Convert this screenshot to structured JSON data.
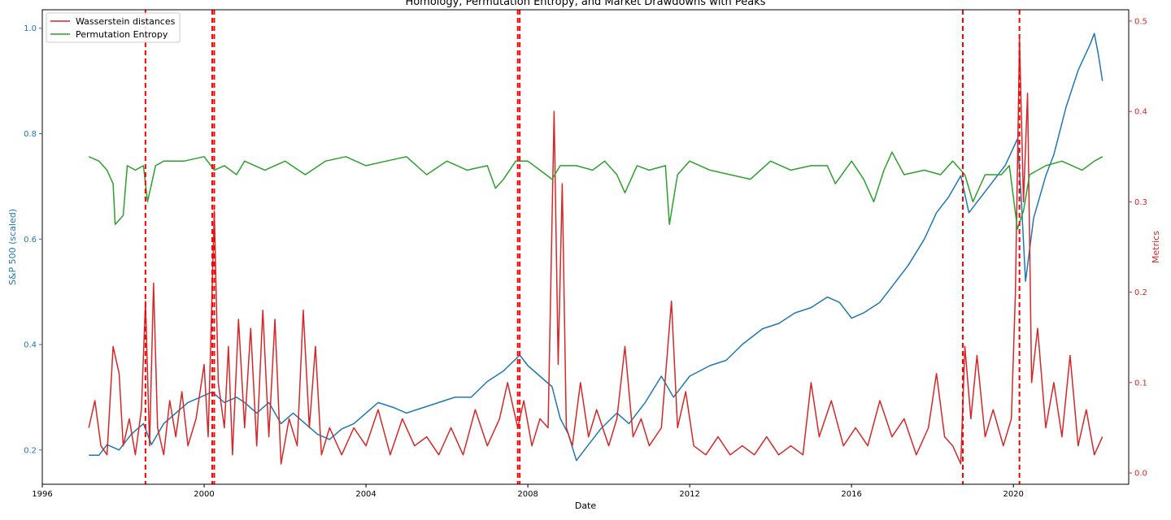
{
  "chart_data": {
    "type": "line",
    "title": "Homology, Permutation Entropy, and Market Drawdowns with Peaks",
    "xlabel": "Date",
    "ylabel_left": "S&P 500 (scaled)",
    "ylabel_right": "Metrics",
    "xlim": [
      1996.0,
      2022.85
    ],
    "ylim_left": [
      0.135,
      1.035
    ],
    "ylim_right": [
      -0.0125,
      0.5125
    ],
    "x_ticks": [
      1996,
      2000,
      2004,
      2008,
      2012,
      2016,
      2020
    ],
    "x_tick_labels": [
      "1996",
      "2000",
      "2004",
      "2008",
      "2012",
      "2016",
      "2020"
    ],
    "y_left_ticks": [
      0.2,
      0.4,
      0.6,
      0.8,
      1.0
    ],
    "y_left_tick_labels": [
      "0.2",
      "0.4",
      "0.6",
      "0.8",
      "1.0"
    ],
    "y_right_ticks": [
      0.0,
      0.1,
      0.2,
      0.3,
      0.4,
      0.5
    ],
    "y_right_tick_labels": [
      "0.0",
      "0.1",
      "0.2",
      "0.3",
      "0.4",
      "0.5"
    ],
    "legend_position": "top-left",
    "grid": false,
    "peak_lines": [
      1998.55,
      2000.2,
      2000.25,
      2007.75,
      2007.8,
      2018.75,
      2020.15
    ],
    "series": [
      {
        "name": "S&P 500 (scaled)",
        "axis": "left",
        "in_legend": false,
        "color": "#1f77b4",
        "points": [
          [
            1997.15,
            0.19
          ],
          [
            1997.4,
            0.19
          ],
          [
            1997.6,
            0.21
          ],
          [
            1997.9,
            0.2
          ],
          [
            1998.2,
            0.23
          ],
          [
            1998.5,
            0.25
          ],
          [
            1998.7,
            0.21
          ],
          [
            1999.0,
            0.25
          ],
          [
            1999.3,
            0.27
          ],
          [
            1999.6,
            0.29
          ],
          [
            1999.9,
            0.3
          ],
          [
            2000.2,
            0.31
          ],
          [
            2000.5,
            0.29
          ],
          [
            2000.8,
            0.3
          ],
          [
            2001.0,
            0.29
          ],
          [
            2001.3,
            0.27
          ],
          [
            2001.6,
            0.29
          ],
          [
            2001.9,
            0.25
          ],
          [
            2002.2,
            0.27
          ],
          [
            2002.5,
            0.25
          ],
          [
            2002.8,
            0.23
          ],
          [
            2003.1,
            0.22
          ],
          [
            2003.4,
            0.24
          ],
          [
            2003.7,
            0.25
          ],
          [
            2004.0,
            0.27
          ],
          [
            2004.3,
            0.29
          ],
          [
            2004.7,
            0.28
          ],
          [
            2005.0,
            0.27
          ],
          [
            2005.4,
            0.28
          ],
          [
            2005.8,
            0.29
          ],
          [
            2006.2,
            0.3
          ],
          [
            2006.6,
            0.3
          ],
          [
            2007.0,
            0.33
          ],
          [
            2007.4,
            0.35
          ],
          [
            2007.8,
            0.38
          ],
          [
            2008.0,
            0.36
          ],
          [
            2008.3,
            0.34
          ],
          [
            2008.6,
            0.32
          ],
          [
            2008.8,
            0.26
          ],
          [
            2009.0,
            0.23
          ],
          [
            2009.2,
            0.18
          ],
          [
            2009.5,
            0.21
          ],
          [
            2009.8,
            0.24
          ],
          [
            2010.2,
            0.27
          ],
          [
            2010.5,
            0.25
          ],
          [
            2010.9,
            0.29
          ],
          [
            2011.3,
            0.34
          ],
          [
            2011.6,
            0.3
          ],
          [
            2012.0,
            0.34
          ],
          [
            2012.5,
            0.36
          ],
          [
            2012.9,
            0.37
          ],
          [
            2013.3,
            0.4
          ],
          [
            2013.8,
            0.43
          ],
          [
            2014.2,
            0.44
          ],
          [
            2014.6,
            0.46
          ],
          [
            2015.0,
            0.47
          ],
          [
            2015.4,
            0.49
          ],
          [
            2015.7,
            0.48
          ],
          [
            2016.0,
            0.45
          ],
          [
            2016.3,
            0.46
          ],
          [
            2016.7,
            0.48
          ],
          [
            2017.0,
            0.51
          ],
          [
            2017.4,
            0.55
          ],
          [
            2017.8,
            0.6
          ],
          [
            2018.1,
            0.65
          ],
          [
            2018.4,
            0.68
          ],
          [
            2018.7,
            0.72
          ],
          [
            2018.9,
            0.65
          ],
          [
            2019.1,
            0.67
          ],
          [
            2019.4,
            0.7
          ],
          [
            2019.8,
            0.74
          ],
          [
            2020.1,
            0.79
          ],
          [
            2020.2,
            0.67
          ],
          [
            2020.3,
            0.52
          ],
          [
            2020.5,
            0.64
          ],
          [
            2020.8,
            0.72
          ],
          [
            2021.0,
            0.76
          ],
          [
            2021.3,
            0.85
          ],
          [
            2021.6,
            0.92
          ],
          [
            2021.9,
            0.97
          ],
          [
            2022.0,
            0.99
          ],
          [
            2022.1,
            0.95
          ],
          [
            2022.2,
            0.9
          ]
        ]
      },
      {
        "name": "Wasserstein distances",
        "axis": "right",
        "color": "#d62728",
        "points": [
          [
            1997.15,
            0.05
          ],
          [
            1997.3,
            0.08
          ],
          [
            1997.45,
            0.03
          ],
          [
            1997.6,
            0.02
          ],
          [
            1997.75,
            0.14
          ],
          [
            1997.9,
            0.11
          ],
          [
            1998.0,
            0.03
          ],
          [
            1998.15,
            0.06
          ],
          [
            1998.3,
            0.02
          ],
          [
            1998.45,
            0.07
          ],
          [
            1998.55,
            0.19
          ],
          [
            1998.65,
            0.03
          ],
          [
            1998.75,
            0.21
          ],
          [
            1998.85,
            0.05
          ],
          [
            1999.0,
            0.02
          ],
          [
            1999.15,
            0.08
          ],
          [
            1999.3,
            0.04
          ],
          [
            1999.45,
            0.09
          ],
          [
            1999.6,
            0.03
          ],
          [
            1999.8,
            0.06
          ],
          [
            2000.0,
            0.12
          ],
          [
            2000.1,
            0.04
          ],
          [
            2000.25,
            0.29
          ],
          [
            2000.35,
            0.1
          ],
          [
            2000.5,
            0.05
          ],
          [
            2000.6,
            0.14
          ],
          [
            2000.7,
            0.02
          ],
          [
            2000.85,
            0.17
          ],
          [
            2001.0,
            0.05
          ],
          [
            2001.15,
            0.16
          ],
          [
            2001.3,
            0.03
          ],
          [
            2001.45,
            0.18
          ],
          [
            2001.6,
            0.04
          ],
          [
            2001.75,
            0.17
          ],
          [
            2001.9,
            0.01
          ],
          [
            2002.1,
            0.06
          ],
          [
            2002.3,
            0.03
          ],
          [
            2002.45,
            0.18
          ],
          [
            2002.6,
            0.05
          ],
          [
            2002.75,
            0.14
          ],
          [
            2002.9,
            0.02
          ],
          [
            2003.1,
            0.05
          ],
          [
            2003.4,
            0.02
          ],
          [
            2003.7,
            0.05
          ],
          [
            2004.0,
            0.03
          ],
          [
            2004.3,
            0.07
          ],
          [
            2004.6,
            0.02
          ],
          [
            2004.9,
            0.06
          ],
          [
            2005.2,
            0.03
          ],
          [
            2005.5,
            0.04
          ],
          [
            2005.8,
            0.02
          ],
          [
            2006.1,
            0.05
          ],
          [
            2006.4,
            0.02
          ],
          [
            2006.7,
            0.07
          ],
          [
            2007.0,
            0.03
          ],
          [
            2007.3,
            0.06
          ],
          [
            2007.5,
            0.1
          ],
          [
            2007.75,
            0.05
          ],
          [
            2007.9,
            0.08
          ],
          [
            2008.1,
            0.03
          ],
          [
            2008.3,
            0.06
          ],
          [
            2008.5,
            0.05
          ],
          [
            2008.65,
            0.4
          ],
          [
            2008.75,
            0.12
          ],
          [
            2008.85,
            0.32
          ],
          [
            2008.95,
            0.05
          ],
          [
            2009.1,
            0.03
          ],
          [
            2009.3,
            0.1
          ],
          [
            2009.5,
            0.04
          ],
          [
            2009.7,
            0.07
          ],
          [
            2010.0,
            0.03
          ],
          [
            2010.2,
            0.06
          ],
          [
            2010.4,
            0.14
          ],
          [
            2010.6,
            0.04
          ],
          [
            2010.8,
            0.06
          ],
          [
            2011.0,
            0.03
          ],
          [
            2011.3,
            0.05
          ],
          [
            2011.55,
            0.19
          ],
          [
            2011.7,
            0.05
          ],
          [
            2011.9,
            0.09
          ],
          [
            2012.1,
            0.03
          ],
          [
            2012.4,
            0.02
          ],
          [
            2012.7,
            0.04
          ],
          [
            2013.0,
            0.02
          ],
          [
            2013.3,
            0.03
          ],
          [
            2013.6,
            0.02
          ],
          [
            2013.9,
            0.04
          ],
          [
            2014.2,
            0.02
          ],
          [
            2014.5,
            0.03
          ],
          [
            2014.8,
            0.02
          ],
          [
            2015.0,
            0.1
          ],
          [
            2015.2,
            0.04
          ],
          [
            2015.5,
            0.08
          ],
          [
            2015.8,
            0.03
          ],
          [
            2016.1,
            0.05
          ],
          [
            2016.4,
            0.03
          ],
          [
            2016.7,
            0.08
          ],
          [
            2017.0,
            0.04
          ],
          [
            2017.3,
            0.06
          ],
          [
            2017.6,
            0.02
          ],
          [
            2017.9,
            0.05
          ],
          [
            2018.1,
            0.11
          ],
          [
            2018.3,
            0.04
          ],
          [
            2018.5,
            0.03
          ],
          [
            2018.7,
            0.01
          ],
          [
            2018.8,
            0.14
          ],
          [
            2018.95,
            0.06
          ],
          [
            2019.1,
            0.13
          ],
          [
            2019.3,
            0.04
          ],
          [
            2019.5,
            0.07
          ],
          [
            2019.75,
            0.03
          ],
          [
            2019.95,
            0.06
          ],
          [
            2020.05,
            0.2
          ],
          [
            2020.15,
            0.48
          ],
          [
            2020.25,
            0.3
          ],
          [
            2020.35,
            0.42
          ],
          [
            2020.45,
            0.1
          ],
          [
            2020.6,
            0.16
          ],
          [
            2020.8,
            0.05
          ],
          [
            2021.0,
            0.1
          ],
          [
            2021.2,
            0.04
          ],
          [
            2021.4,
            0.13
          ],
          [
            2021.6,
            0.03
          ],
          [
            2021.8,
            0.07
          ],
          [
            2022.0,
            0.02
          ],
          [
            2022.2,
            0.04
          ]
        ]
      },
      {
        "name": "Permutation Entropy",
        "axis": "right",
        "color": "#2ca02c",
        "points": [
          [
            1997.15,
            0.35
          ],
          [
            1997.4,
            0.345
          ],
          [
            1997.6,
            0.335
          ],
          [
            1997.75,
            0.32
          ],
          [
            1997.8,
            0.275
          ],
          [
            1998.0,
            0.285
          ],
          [
            1998.1,
            0.34
          ],
          [
            1998.3,
            0.335
          ],
          [
            1998.5,
            0.34
          ],
          [
            1998.6,
            0.3
          ],
          [
            1998.8,
            0.34
          ],
          [
            1999.0,
            0.345
          ],
          [
            1999.5,
            0.345
          ],
          [
            2000.0,
            0.35
          ],
          [
            2000.25,
            0.335
          ],
          [
            2000.5,
            0.34
          ],
          [
            2000.8,
            0.33
          ],
          [
            2001.0,
            0.345
          ],
          [
            2001.5,
            0.335
          ],
          [
            2002.0,
            0.345
          ],
          [
            2002.5,
            0.33
          ],
          [
            2003.0,
            0.345
          ],
          [
            2003.5,
            0.35
          ],
          [
            2004.0,
            0.34
          ],
          [
            2004.5,
            0.345
          ],
          [
            2005.0,
            0.35
          ],
          [
            2005.5,
            0.33
          ],
          [
            2006.0,
            0.345
          ],
          [
            2006.5,
            0.335
          ],
          [
            2007.0,
            0.34
          ],
          [
            2007.2,
            0.315
          ],
          [
            2007.4,
            0.325
          ],
          [
            2007.7,
            0.345
          ],
          [
            2008.0,
            0.345
          ],
          [
            2008.3,
            0.335
          ],
          [
            2008.6,
            0.325
          ],
          [
            2008.8,
            0.34
          ],
          [
            2009.2,
            0.34
          ],
          [
            2009.6,
            0.335
          ],
          [
            2009.9,
            0.345
          ],
          [
            2010.2,
            0.33
          ],
          [
            2010.4,
            0.31
          ],
          [
            2010.7,
            0.34
          ],
          [
            2011.0,
            0.335
          ],
          [
            2011.4,
            0.34
          ],
          [
            2011.5,
            0.275
          ],
          [
            2011.7,
            0.33
          ],
          [
            2012.0,
            0.345
          ],
          [
            2012.5,
            0.335
          ],
          [
            2013.0,
            0.33
          ],
          [
            2013.5,
            0.325
          ],
          [
            2014.0,
            0.345
          ],
          [
            2014.5,
            0.335
          ],
          [
            2015.0,
            0.34
          ],
          [
            2015.4,
            0.34
          ],
          [
            2015.6,
            0.32
          ],
          [
            2016.0,
            0.345
          ],
          [
            2016.3,
            0.325
          ],
          [
            2016.55,
            0.3
          ],
          [
            2016.8,
            0.335
          ],
          [
            2017.0,
            0.355
          ],
          [
            2017.3,
            0.33
          ],
          [
            2017.8,
            0.335
          ],
          [
            2018.2,
            0.33
          ],
          [
            2018.5,
            0.345
          ],
          [
            2018.8,
            0.33
          ],
          [
            2019.0,
            0.3
          ],
          [
            2019.3,
            0.33
          ],
          [
            2019.7,
            0.33
          ],
          [
            2019.9,
            0.34
          ],
          [
            2020.1,
            0.27
          ],
          [
            2020.25,
            0.29
          ],
          [
            2020.4,
            0.33
          ],
          [
            2020.8,
            0.34
          ],
          [
            2021.2,
            0.345
          ],
          [
            2021.7,
            0.335
          ],
          [
            2022.0,
            0.345
          ],
          [
            2022.2,
            0.35
          ]
        ]
      }
    ]
  }
}
